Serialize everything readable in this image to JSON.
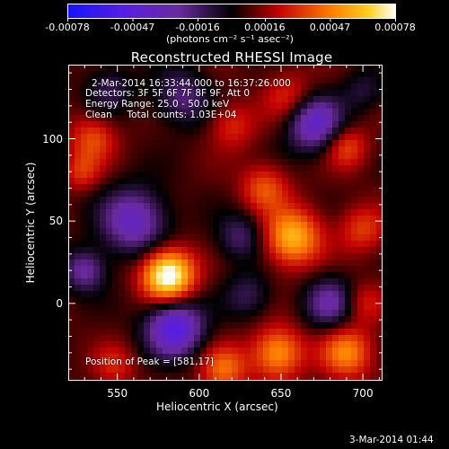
{
  "chart_data": {
    "type": "heatmap",
    "title": "Reconstructed RHESSI Image",
    "xlabel": "Heliocentric X (arcsec)",
    "ylabel": "Heliocentric Y (arcsec)",
    "xlim": [
      520,
      712
    ],
    "ylim": [
      -47,
      145
    ],
    "x_ticks": [
      550,
      600,
      650,
      700
    ],
    "x_tick_labels": [
      "550",
      "600",
      "650",
      "700"
    ],
    "y_ticks": [
      0,
      50,
      100
    ],
    "y_tick_labels": [
      "0",
      "50",
      "100"
    ],
    "colorbar": {
      "range": [
        -0.00078,
        0.00078
      ],
      "tick_values": [
        -0.00078,
        -0.00047,
        -0.00016,
        0.00016,
        0.00047,
        0.00078
      ],
      "tick_labels": [
        "-0.00078",
        "-0.00047",
        "-0.00016",
        "0.00016",
        "0.00047",
        "0.00078"
      ],
      "unit_label": "(photons cm⁻² s⁻¹ asec⁻²)",
      "colormap": "blue-purple-black-red-orange-yellow-white"
    },
    "annotations": {
      "time_range": "2-Mar-2014 16:33:44.000 to 16:37:26.000",
      "detectors": "Detectors: 3F 5F 6F 7F 8F 9F, Att 0",
      "energy_range": "Energy Range: 25.0 - 50.0 keV",
      "clean_counts": "Clean     Total counts: 1.03E+04",
      "peak_position": "Position of Peak = [581,17]"
    },
    "sources": [
      {
        "x": 581,
        "y": 17,
        "amplitude": 0.00078,
        "sigma": 11
      },
      {
        "x": 657,
        "y": 40,
        "amplitude": 0.00052,
        "sigma": 12
      },
      {
        "x": 640,
        "y": 70,
        "amplitude": 0.0003,
        "sigma": 10
      },
      {
        "x": 620,
        "y": 108,
        "amplitude": 0.00022,
        "sigma": 10
      },
      {
        "x": 655,
        "y": 125,
        "amplitude": 0.00025,
        "sigma": 11
      },
      {
        "x": 535,
        "y": 100,
        "amplitude": 0.00028,
        "sigma": 10
      },
      {
        "x": 528,
        "y": 80,
        "amplitude": 0.00022,
        "sigma": 8
      },
      {
        "x": 690,
        "y": 95,
        "amplitude": 0.00028,
        "sigma": 9
      },
      {
        "x": 700,
        "y": 45,
        "amplitude": 0.00025,
        "sigma": 10
      },
      {
        "x": 648,
        "y": -30,
        "amplitude": 0.00045,
        "sigma": 11
      },
      {
        "x": 690,
        "y": -30,
        "amplitude": 0.0004,
        "sigma": 11
      },
      {
        "x": 615,
        "y": -40,
        "amplitude": 0.00035,
        "sigma": 10
      },
      {
        "x": 548,
        "y": -38,
        "amplitude": 0.0002,
        "sigma": 9
      },
      {
        "x": 700,
        "y": 0,
        "amplitude": 0.0002,
        "sigma": 9
      },
      {
        "x": 560,
        "y": 50,
        "amplitude": -0.00045,
        "sigma": 14
      },
      {
        "x": 585,
        "y": -15,
        "amplitude": -0.0006,
        "sigma": 12
      },
      {
        "x": 670,
        "y": 110,
        "amplitude": -0.0005,
        "sigma": 12
      },
      {
        "x": 625,
        "y": 40,
        "amplitude": -0.00025,
        "sigma": 10
      },
      {
        "x": 530,
        "y": 20,
        "amplitude": -0.00035,
        "sigma": 9
      },
      {
        "x": 680,
        "y": 0,
        "amplitude": -0.00035,
        "sigma": 11
      },
      {
        "x": 590,
        "y": 125,
        "amplitude": -0.00028,
        "sigma": 12
      },
      {
        "x": 545,
        "y": 130,
        "amplitude": -0.00022,
        "sigma": 10
      },
      {
        "x": 700,
        "y": 130,
        "amplitude": -0.00015,
        "sigma": 9
      },
      {
        "x": 630,
        "y": 5,
        "amplitude": -0.0002,
        "sigma": 10
      }
    ]
  },
  "footer": {
    "date": "3-Mar-2014 01:44"
  }
}
